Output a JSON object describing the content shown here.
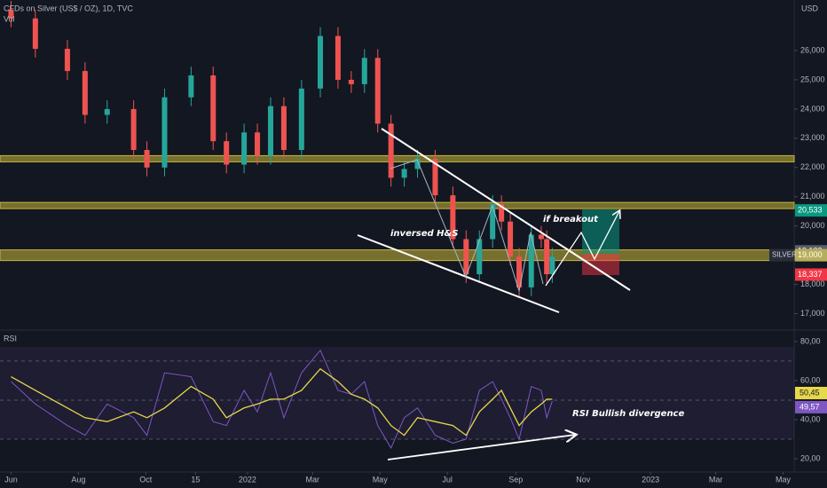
{
  "chart_data": [
    {
      "type": "candlestick",
      "title": "CFDs on Silver (US$ / OZ), 1D, TVC",
      "subtitle": "Vol",
      "y_unit": "USD",
      "symbol": "SILVER",
      "annotations": [
        "inversed H&S",
        "if breakout"
      ],
      "x": [
        0,
        22,
        51,
        67,
        87,
        111,
        123,
        139,
        163,
        183,
        195,
        211,
        223,
        235,
        247,
        263,
        280,
        296,
        308,
        320,
        332,
        344,
        356,
        368,
        384,
        400,
        412,
        424,
        436,
        444,
        452,
        460,
        471,
        480,
        485,
        490
      ],
      "open": [
        27400,
        27100,
        26060,
        25300,
        23800,
        24000,
        22600,
        22000,
        24400,
        25150,
        22900,
        22100,
        23200,
        22400,
        24100,
        22600,
        24700,
        26500,
        25000,
        24850,
        25750,
        23500,
        21650,
        21950,
        22300,
        21050,
        19550,
        18350,
        19550,
        20750,
        20150,
        18950,
        17900,
        19700,
        19550,
        18350
      ],
      "high": [
        27700,
        27400,
        26360,
        25600,
        24300,
        24300,
        22900,
        24700,
        25450,
        25450,
        23200,
        23500,
        23500,
        24400,
        24400,
        25000,
        26800,
        26800,
        25300,
        26050,
        26050,
        23800,
        22250,
        22600,
        22600,
        21350,
        19850,
        19850,
        21050,
        21050,
        20450,
        19250,
        20000,
        20000,
        19850,
        19250
      ],
      "low": [
        26800,
        25760,
        25000,
        23500,
        23500,
        22300,
        21700,
        21700,
        24100,
        22600,
        21800,
        21800,
        22100,
        22100,
        22300,
        22300,
        24400,
        24700,
        24550,
        24550,
        23200,
        21350,
        21350,
        21650,
        20750,
        19250,
        18050,
        18050,
        19250,
        19850,
        18650,
        17600,
        17600,
        19250,
        18050,
        18050
      ],
      "close": [
        27100,
        26060,
        25300,
        23800,
        24000,
        22600,
        22000,
        24400,
        25150,
        22900,
        22100,
        23200,
        22400,
        24100,
        22600,
        24700,
        26500,
        25000,
        24850,
        25750,
        23500,
        21650,
        21950,
        22300,
        21050,
        19550,
        18350,
        19550,
        20750,
        20150,
        18950,
        17900,
        19700,
        19550,
        18350,
        18950
      ],
      "up_color": "#26a69a",
      "down_color": "#ef5350",
      "xlim": [
        -10,
        709
      ],
      "ylim": [
        16500,
        27730
      ],
      "yticks": [
        {
          "value": 17000,
          "label": "17,000"
        },
        {
          "value": 18000,
          "label": "18,000"
        },
        {
          "value": 19000,
          "label": "19,000"
        },
        {
          "value": 20000,
          "label": "20,000"
        },
        {
          "value": 21000,
          "label": "21,000"
        },
        {
          "value": 22000,
          "label": "22,000"
        },
        {
          "value": 23000,
          "label": "23,000"
        },
        {
          "value": 24000,
          "label": "24,000"
        },
        {
          "value": 25000,
          "label": "25,000"
        },
        {
          "value": 26000,
          "label": "26,000"
        }
      ],
      "levels": [
        22300,
        20700,
        19000
      ],
      "level_color": "#c9b83a",
      "price_labels": [
        {
          "value": 20533,
          "label": "20,533",
          "color": "#089981"
        },
        {
          "value": 19132,
          "label": "19,132",
          "color": "#5d606b"
        },
        {
          "value": 19000,
          "label": "19,000",
          "color": "#b8ad5a"
        },
        {
          "value": 18337,
          "label": "18,337",
          "color": "#f23645"
        }
      ]
    },
    {
      "type": "line",
      "title": "RSI",
      "annotations": [
        "RSI Bullish divergence"
      ],
      "x": [
        0,
        22,
        51,
        67,
        87,
        111,
        123,
        139,
        163,
        183,
        195,
        211,
        223,
        235,
        247,
        263,
        280,
        296,
        308,
        320,
        332,
        344,
        356,
        368,
        384,
        400,
        412,
        424,
        436,
        444,
        452,
        460,
        471,
        480,
        485,
        490
      ],
      "series": [
        {
          "color": "#7e57c2",
          "values": [
            59.5,
            48,
            37,
            32,
            48,
            41,
            32,
            64,
            62,
            39,
            37,
            55,
            44,
            64,
            41,
            64,
            75.5,
            55,
            53,
            59.5,
            37,
            25.5,
            41,
            46,
            32,
            28,
            30,
            55,
            59.5,
            50.5,
            41,
            30,
            57,
            55,
            41,
            49.57
          ]
        },
        {
          "color": "#e6d84a",
          "values": [
            62,
            55,
            46,
            41,
            39,
            44,
            41,
            46,
            57,
            50.5,
            41,
            46,
            48,
            50.5,
            50.5,
            55,
            66,
            59.5,
            53,
            50.5,
            46,
            37,
            32,
            41,
            39,
            37,
            32,
            44,
            50.5,
            55,
            46,
            37,
            44,
            48,
            50.5,
            50.45
          ]
        }
      ],
      "markers": [
        {
          "value": 50.45,
          "label": "50,45",
          "color": "#e6d84a"
        },
        {
          "value": 49.57,
          "label": "49,57",
          "color": "#7e57c2"
        }
      ],
      "bands": [
        70,
        50,
        30
      ],
      "xlim": [
        -10,
        709
      ],
      "ylim": [
        13.2,
        84.5
      ],
      "yticks": [
        {
          "value": 20,
          "label": "20,00"
        },
        {
          "value": 40,
          "label": "40,00"
        },
        {
          "value": 60,
          "label": "60,00"
        },
        {
          "value": 80,
          "label": "80,00"
        }
      ],
      "xticks": [
        {
          "value": 0,
          "label": "Jun"
        },
        {
          "value": 61,
          "label": "Aug"
        },
        {
          "value": 122,
          "label": "Oct"
        },
        {
          "value": 167,
          "label": "15"
        },
        {
          "value": 214,
          "label": "2022"
        },
        {
          "value": 273,
          "label": "Mar"
        },
        {
          "value": 334,
          "label": "May"
        },
        {
          "value": 395,
          "label": "Jul"
        },
        {
          "value": 457,
          "label": "Sep"
        },
        {
          "value": 518,
          "label": "Nov"
        },
        {
          "value": 579,
          "label": "2023"
        },
        {
          "value": 638,
          "label": "Mar"
        },
        {
          "value": 699,
          "label": "May"
        }
      ]
    }
  ]
}
